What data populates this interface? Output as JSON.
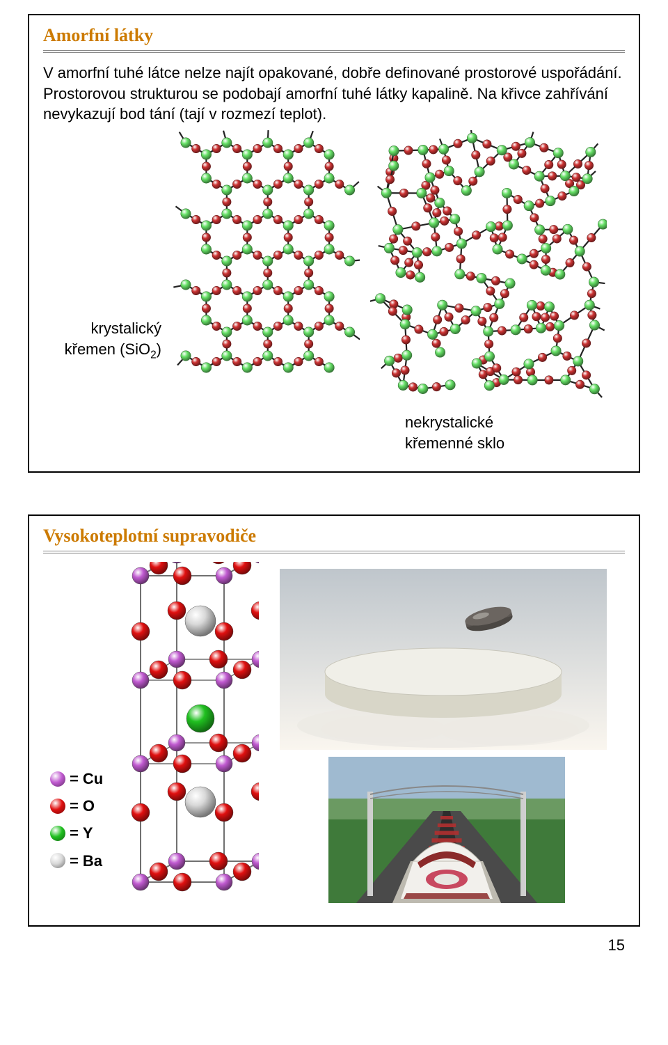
{
  "frame1": {
    "title": "Amorfní látky",
    "paragraph": "V amorfní tuhé látce nelze najít opakované, dobře definované prostorové uspořádání. Prostorovou strukturou se podobají amorfní tuhé látky kapalině. Na křivce zahřívání nevykazují bod tání (tají v rozmezí teplot).",
    "left_caption_line1": "krystalický",
    "left_caption_line2_pre": "křemen (SiO",
    "left_caption_line2_sub": "2",
    "left_caption_line2_post": ")",
    "right_caption_line1": "nekrystalické",
    "right_caption_line2": "křemenné sklo",
    "silica": {
      "atom_si_color": "#66e066",
      "atom_o_color": "#cc3333",
      "bond_color": "#222222"
    }
  },
  "frame2": {
    "title": "Vysokoteplotní supravodiče",
    "legend": {
      "eq": "=",
      "items": [
        {
          "label": "Cu",
          "color": "#c05ad0"
        },
        {
          "label": "O",
          "color": "#e01010"
        },
        {
          "label": "Y",
          "color": "#20c020"
        },
        {
          "label": "Ba",
          "color": "#d8d8d8"
        }
      ]
    },
    "ybco": {
      "frame_color": "#707070",
      "cu_color": "#c05ad0",
      "o_color": "#e01010",
      "y_color": "#20c020",
      "ba_color": "#d8d8d8"
    },
    "meissner": {
      "bg_gradient_top": "#bfc6cc",
      "bg_gradient_bottom": "#faf6ef",
      "disc_top": "#f0efe8",
      "disc_side": "#d8d6c8",
      "magnet_color": "#6b6560",
      "vapor_color": "#eceae4"
    },
    "maglev": {
      "sky": "#9fbad0",
      "field": "#3f7a3a",
      "far_field": "#6b9a62",
      "track_bed": "#4a4a4a",
      "sleeper": "#b03030",
      "pylon": "#cfcfcf",
      "cable": "#888888",
      "train_body": "#f2f0ec",
      "train_shadow": "#bdbab0",
      "window_stripe": "#8b2a2a",
      "nose_oval": "#c84860"
    }
  },
  "page_number": "15"
}
